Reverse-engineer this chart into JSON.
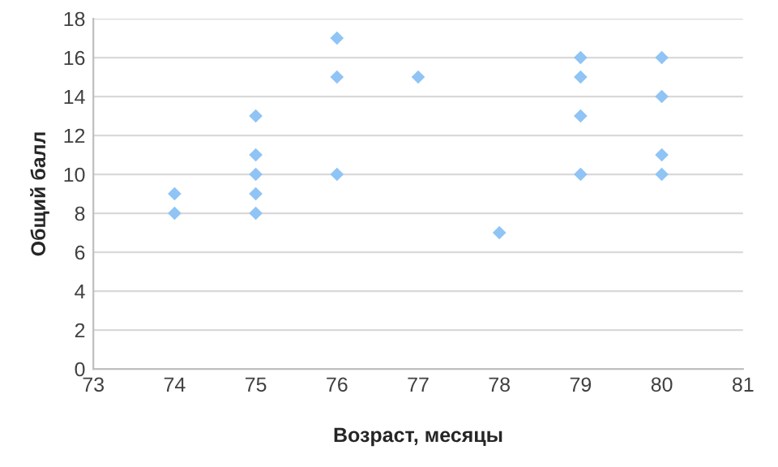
{
  "chart_data": {
    "type": "scatter",
    "xlabel": "Возраст, месяцы",
    "ylabel": "Общий балл",
    "series": [
      {
        "color": "#8fc4f5",
        "x": [
          74,
          74,
          75,
          75,
          75,
          75,
          75,
          76,
          76,
          76,
          77,
          78,
          79,
          79,
          79,
          79,
          80,
          80,
          80,
          80
        ],
        "values": [
          9,
          8,
          13,
          11,
          10,
          9,
          8,
          17,
          15,
          10,
          15,
          7,
          16,
          15,
          13,
          10,
          16,
          14,
          11,
          10
        ]
      }
    ],
    "xlim": [
      73,
      81
    ],
    "xticks": [
      73,
      74,
      75,
      76,
      77,
      78,
      79,
      80,
      81
    ],
    "ylim": [
      0,
      18
    ],
    "yticks": [
      0,
      2,
      4,
      6,
      8,
      10,
      12,
      14,
      16,
      18
    ],
    "grid": "y",
    "marker": "diamond",
    "legend": false
  }
}
